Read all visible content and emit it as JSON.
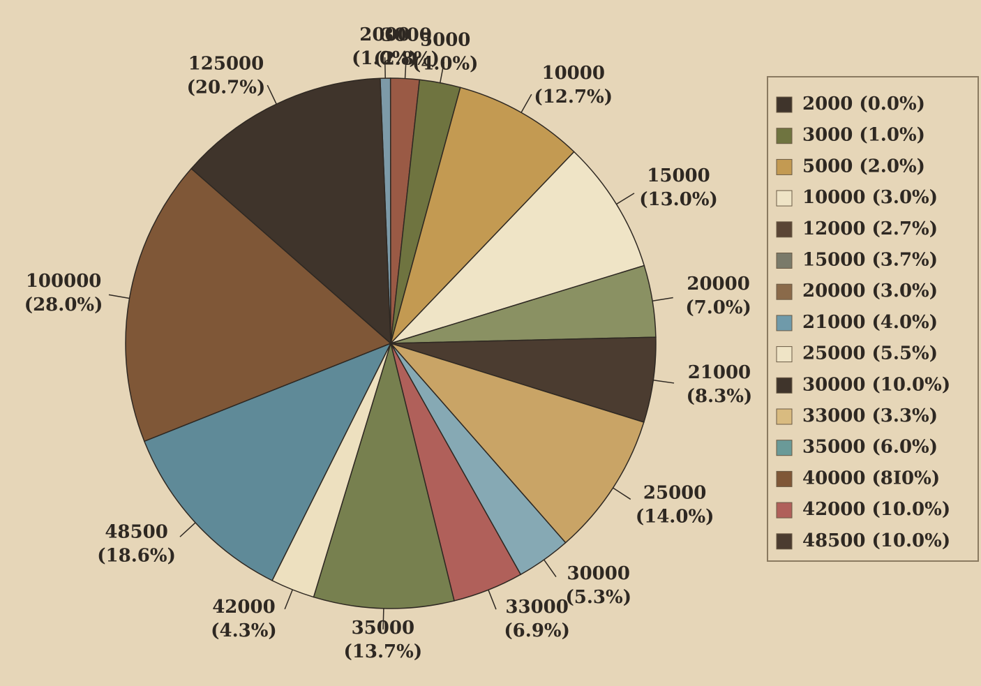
{
  "chart_data": {
    "type": "pie",
    "categories": [
      "2000",
      "3000",
      "5000",
      "10000",
      "15000",
      "20000",
      "21000",
      "25000",
      "30000",
      "33000",
      "35000",
      "42000",
      "48500",
      "100000",
      "125000"
    ],
    "values": [
      1.0,
      2.8,
      4.0,
      12.7,
      13.0,
      7.0,
      8.3,
      14.0,
      5.3,
      6.9,
      13.7,
      4.3,
      18.6,
      28.0,
      20.7
    ],
    "value_labels": [
      "(1.0%)",
      "(2.8%)",
      "(4.0%)",
      "(12.7%)",
      "(13.0%)",
      "(7.0%)",
      "(8.3%)",
      "(14.0%)",
      "(5.3%)",
      "(6.9%)",
      "(13.7%)",
      "(4.3%)",
      "(18.6%)",
      "(28.0%)",
      "(20.7%)"
    ],
    "colors": [
      "#7d9aa8",
      "#9a5a45",
      "#6f7440",
      "#c39a52",
      "#efe4c6",
      "#8a9163",
      "#4b3c30",
      "#c9a466",
      "#86a9b4",
      "#b0605a",
      "#77804f",
      "#ede0bf",
      "#5f8a98",
      "#7f5737",
      "#3f342b"
    ],
    "legend": {
      "entries": [
        "2000 (0.0%)",
        "3000 (1.0%)",
        "5000 (2.0%)",
        "10000 (3.0%)",
        "12000 (2.7%)",
        "15000 (3.7%)",
        "20000 (3.0%)",
        "21000 (4.0%)",
        "25000 (5.5%)",
        "30000 (10.0%)",
        "33000 (3.3%)",
        "35000 (6.0%)",
        "40000 (8I0%)",
        "42000 (10.0%)",
        "48500 (10.0%)"
      ],
      "colors": [
        "#3f342b",
        "#6f7440",
        "#c39a52",
        "#efe4c6",
        "#5a4535",
        "#7a7a6a",
        "#8a6a4a",
        "#6f9aaa",
        "#efe4c6",
        "#3f342b",
        "#d9bb80",
        "#6a9a98",
        "#7f5737",
        "#b0605a",
        "#4b3c30"
      ]
    }
  }
}
